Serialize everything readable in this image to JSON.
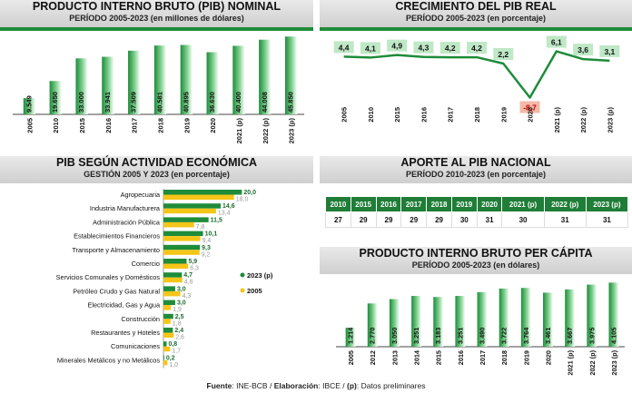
{
  "panels": {
    "pib_nominal": {
      "title": "PRODUCTO INTERNO BRUTO (PIB) NOMINAL",
      "subtitle": "PERÍODO 2005-2023 (en millones de dólares)"
    },
    "crecimiento": {
      "title": "CRECIMIENTO DEL PIB REAL",
      "subtitle": "PERÍODO 2005-2023 (en porcentaje)"
    },
    "actividad": {
      "title": "PIB SEGÚN ACTIVIDAD ECONÓMICA",
      "subtitle": "GESTIÓN 2005 Y 2023 (en porcentaje)"
    },
    "aporte": {
      "title": "APORTE AL PIB NACIONAL",
      "subtitle": "PERÍODO 2010-2023 (en porcentaje)"
    },
    "percapita": {
      "title": "PRODUCTO INTERNO BRUTO PER CÁPITA",
      "subtitle": "PERÍODO 2005-2023 (en dólares)"
    }
  },
  "footer": {
    "fuente_label": "Fuente",
    "fuente_text": ": INE-BCB / ",
    "elab_label": "Elaboración",
    "elab_text": ": IBCE / ",
    "p_label": "(p)",
    "p_text": ": Datos preliminares"
  },
  "colors": {
    "green": "#1e8c3a",
    "green_light": "#7fd08f",
    "yellow": "#f5c518",
    "red_box": "#f4b9a6"
  },
  "chart_data": [
    {
      "type": "bar",
      "title": "PRODUCTO INTERNO BRUTO (PIB) NOMINAL",
      "categories": [
        "2005",
        "2010",
        "2015",
        "2016",
        "2017",
        "2018",
        "2019",
        "2020",
        "2021 (p)",
        "2022 (p)",
        "2023 (p)"
      ],
      "values": [
        9.549,
        19.65,
        33.0,
        33.941,
        37.509,
        40.581,
        40.895,
        36.63,
        40.4,
        44.008,
        45.85
      ],
      "labels": [
        "9.549",
        "19.650",
        "33.000",
        "33.941",
        "37.509",
        "40.581",
        "40.895",
        "36.630",
        "40.400",
        "44.008",
        "45.850"
      ],
      "ylim": [
        0,
        46000
      ]
    },
    {
      "type": "line",
      "title": "CRECIMIENTO DEL PIB REAL",
      "categories": [
        "2005",
        "2010",
        "2015",
        "2016",
        "2017",
        "2018",
        "2019",
        "2020",
        "2021 (p)",
        "2022 (p)",
        "2023 (p)"
      ],
      "values": [
        4.4,
        4.1,
        4.9,
        4.3,
        4.2,
        4.2,
        2.2,
        -8.7,
        6.1,
        3.6,
        3.1
      ],
      "labels": [
        "4,4",
        "4,1",
        "4,9",
        "4,3",
        "4,2",
        "4,2",
        "2,2",
        "-8,7",
        "6,1",
        "3,6",
        "3,1"
      ],
      "ylim": [
        -10,
        8
      ]
    },
    {
      "type": "bar",
      "title": "PIB SEGÚN ACTIVIDAD ECONÓMICA",
      "orientation": "horizontal",
      "categories": [
        "Agropecuaria",
        "Industria Manufacturera",
        "Administración Pública",
        "Establecimientos Financieros",
        "Transporte y Almacenamiento",
        "Comercio",
        "Servicios Comunales y Domésticos",
        "Petróleo Crudo y Gas Natural",
        "Electricidad, Gas y Agua",
        "Construcción",
        "Restaurantes y Hoteles",
        "Comunicaciones",
        "Minerales Metálicos y no Metálicos"
      ],
      "series": [
        {
          "name": "2023 (p)",
          "values": [
            20.0,
            14.6,
            11.5,
            10.1,
            9.3,
            5.9,
            4.7,
            3.0,
            3.0,
            2.5,
            2.4,
            0.8,
            0.2
          ],
          "labels": [
            "20,0",
            "14,6",
            "11,5",
            "10,1",
            "9,3",
            "5,9",
            "4,7",
            "3,0",
            "3,0",
            "2,5",
            "2,4",
            "0,8",
            "0,2"
          ]
        },
        {
          "name": "2005",
          "values": [
            18.0,
            13.4,
            7.8,
            9.4,
            9.2,
            6.3,
            4.8,
            4.3,
            1.9,
            1.8,
            2.6,
            1.7,
            1.0
          ],
          "labels": [
            "18,0",
            "13,4",
            "7,8",
            "9,4",
            "9,2",
            "6,3",
            "4,8",
            "4,3",
            "1,9",
            "1,8",
            "2,6",
            "1,7",
            "1,0"
          ]
        }
      ],
      "xlim": [
        0,
        22
      ]
    },
    {
      "type": "table",
      "title": "APORTE AL PIB NACIONAL",
      "columns": [
        "2010",
        "2015",
        "2016",
        "2017",
        "2018",
        "2019",
        "2020",
        "2021 (p)",
        "2022 (p)",
        "2023 (p)"
      ],
      "values": [
        "27",
        "29",
        "29",
        "29",
        "29",
        "30",
        "31",
        "30",
        "31",
        "31"
      ]
    },
    {
      "type": "bar",
      "title": "PRODUCTO INTERNO BRUTO PER CÁPITA",
      "categories": [
        "2005",
        "2012",
        "2013",
        "2014",
        "2015",
        "2016",
        "2017",
        "2018",
        "2019",
        "2020",
        "2021 (p)",
        "2022 (p)",
        "2023 (p)"
      ],
      "values": [
        1.214,
        2.77,
        3.05,
        3.251,
        3.183,
        3.251,
        3.49,
        3.722,
        3.764,
        3.461,
        3.667,
        3.975,
        4.105
      ],
      "labels": [
        "1.214",
        "2.770",
        "3.050",
        "3.251",
        "3.183",
        "3.251",
        "3.490",
        "3.722",
        "3.764",
        "3.461",
        "3.667",
        "3.975",
        "4.105"
      ],
      "ylim": [
        0,
        4300
      ]
    }
  ]
}
